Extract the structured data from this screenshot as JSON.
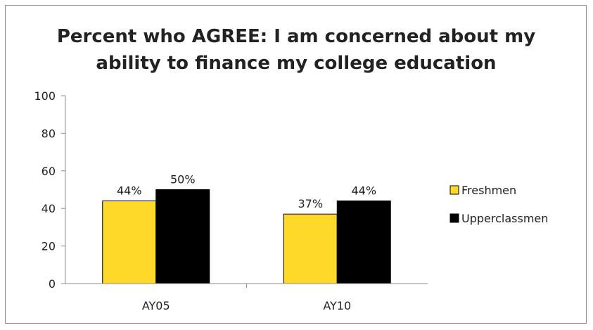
{
  "chart_data": {
    "type": "bar",
    "title": "Percent who AGREE: I am concerned about my ability to finance my college education",
    "title_lines": [
      "Percent who AGREE: I am concerned about my",
      "ability to finance my college education"
    ],
    "categories": [
      "AY05",
      "AY10"
    ],
    "series": [
      {
        "name": "Freshmen",
        "color": "#FFD92A",
        "values": [
          44,
          37
        ],
        "labels": [
          "44%",
          "37%"
        ]
      },
      {
        "name": "Upperclassmen",
        "color": "#000000",
        "values": [
          50,
          44
        ],
        "labels": [
          "50%",
          "44%"
        ]
      }
    ],
    "ylim": [
      0,
      100
    ],
    "yticks": [
      "0",
      "20",
      "40",
      "60",
      "80",
      "100"
    ],
    "xlabel": "",
    "ylabel": "",
    "grid": false,
    "legend_position": "right"
  }
}
